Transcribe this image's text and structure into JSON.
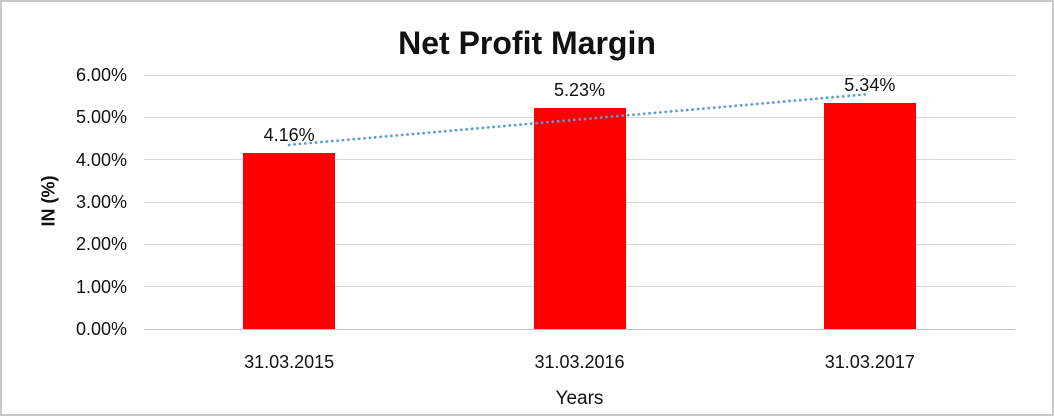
{
  "chart_data": {
    "type": "bar",
    "title": "Net Profit Margin",
    "xlabel": "Years",
    "ylabel": "IN (%)",
    "categories": [
      "31.03.2015",
      "31.03.2016",
      "31.03.2017"
    ],
    "series": [
      {
        "name": "Net Profit Margin",
        "values": [
          4.16,
          5.23,
          5.34
        ]
      }
    ],
    "data_labels": [
      "4.16%",
      "5.23%",
      "5.34%"
    ],
    "ylim": [
      0,
      6
    ],
    "ytick_step": 1,
    "ytick_labels": [
      "0.00%",
      "1.00%",
      "2.00%",
      "3.00%",
      "4.00%",
      "5.00%",
      "6.00%"
    ],
    "grid": true,
    "legend": "none",
    "trendline": {
      "type": "linear",
      "style": "dotted",
      "color": "#5b9bd5",
      "start_value": 4.35,
      "end_value": 5.55
    },
    "colors": {
      "bar": "#ff0000",
      "gridline": "#d9d9d9",
      "axis_line": "#bfbfbf",
      "text": "#111111",
      "background": "#ffffff",
      "border": "#c8c8c8"
    }
  }
}
